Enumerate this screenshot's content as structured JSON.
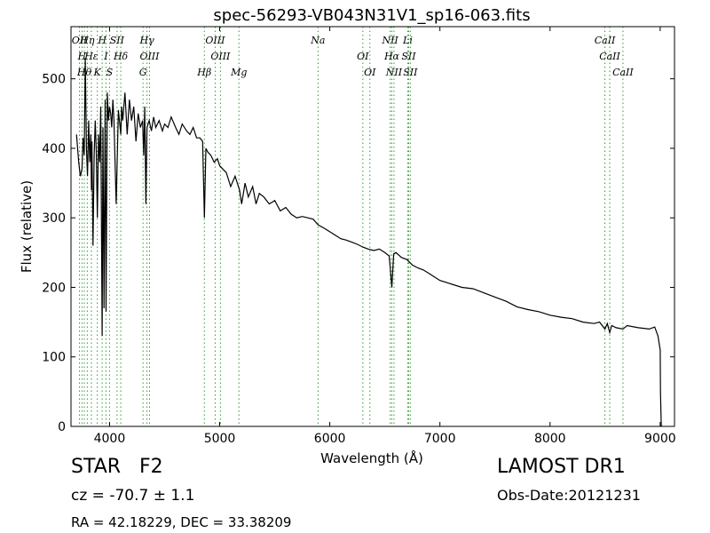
{
  "chart_data": {
    "type": "line",
    "title": "spec-56293-VB043N31V1_sp16-063.fits",
    "xlabel": "Wavelength (Å)",
    "ylabel": "Flux (relative)",
    "xlim": [
      3650,
      9130
    ],
    "ylim": [
      0,
      575
    ],
    "xticks": [
      4000,
      5000,
      6000,
      7000,
      8000,
      9000
    ],
    "yticks": [
      0,
      100,
      200,
      300,
      400,
      500
    ],
    "grid": false,
    "line_color": "#000000",
    "marker_color": "#2ca02c",
    "series": [
      {
        "values_x": [
          3700,
          3720,
          3735,
          3750,
          3760,
          3770,
          3780,
          3790,
          3800,
          3810,
          3820,
          3830,
          3835,
          3840,
          3850,
          3860,
          3870,
          3880,
          3889,
          3900,
          3910,
          3920,
          3933,
          3940,
          3950,
          3960,
          3968,
          3980,
          3990,
          4000,
          4010,
          4020,
          4030,
          4040,
          4060,
          4080,
          4102,
          4110,
          4120,
          4140,
          4160,
          4180,
          4200,
          4220,
          4240,
          4260,
          4280,
          4300,
          4310,
          4320,
          4330,
          4340,
          4360,
          4380,
          4400,
          4420,
          4450,
          4480,
          4500,
          4530,
          4560,
          4600,
          4630,
          4660,
          4700,
          4730,
          4760,
          4790,
          4820,
          4845,
          4861,
          4875,
          4890,
          4920,
          4950,
          4980,
          5000,
          5030,
          5060,
          5100,
          5140,
          5180,
          5200,
          5230,
          5260,
          5300,
          5330,
          5360,
          5400,
          5450,
          5500,
          5550,
          5600,
          5650,
          5700,
          5750,
          5800,
          5850,
          5893,
          5950,
          6000,
          6050,
          6100,
          6150,
          6200,
          6250,
          6300,
          6350,
          6400,
          6450,
          6500,
          6540,
          6563,
          6580,
          6600,
          6650,
          6700,
          6750,
          6800,
          6850,
          6900,
          6950,
          7000,
          7100,
          7200,
          7300,
          7400,
          7500,
          7600,
          7700,
          7800,
          7900,
          8000,
          8100,
          8200,
          8300,
          8400,
          8450,
          8498,
          8520,
          8542,
          8560,
          8600,
          8662,
          8700,
          8800,
          8900,
          8950,
          8980,
          9000,
          9003,
          9010,
          9020
        ],
        "values_y": [
          420,
          380,
          360,
          370,
          415,
          390,
          530,
          400,
          360,
          440,
          380,
          420,
          340,
          410,
          260,
          390,
          440,
          395,
          300,
          420,
          380,
          460,
          130,
          430,
          170,
          470,
          165,
          480,
          440,
          460,
          450,
          430,
          470,
          440,
          320,
          455,
          420,
          460,
          440,
          480,
          420,
          470,
          440,
          460,
          410,
          450,
          430,
          440,
          390,
          460,
          320,
          430,
          440,
          425,
          445,
          430,
          440,
          425,
          435,
          430,
          445,
          430,
          420,
          435,
          425,
          420,
          430,
          415,
          415,
          410,
          300,
          400,
          395,
          390,
          380,
          385,
          375,
          370,
          365,
          345,
          360,
          340,
          320,
          350,
          330,
          345,
          320,
          335,
          330,
          320,
          325,
          310,
          315,
          305,
          300,
          302,
          300,
          298,
          290,
          285,
          280,
          275,
          270,
          268,
          265,
          262,
          258,
          255,
          253,
          255,
          250,
          245,
          200,
          248,
          250,
          243,
          240,
          232,
          228,
          225,
          220,
          215,
          210,
          205,
          200,
          198,
          192,
          186,
          180,
          172,
          168,
          165,
          160,
          157,
          155,
          150,
          148,
          150,
          140,
          148,
          135,
          145,
          142,
          140,
          145,
          142,
          140,
          143,
          130,
          110,
          50,
          0,
          0
        ],
        "name": ""
      }
    ],
    "lines": [
      {
        "x": 3727,
        "label": "OII"
      },
      {
        "x": 3750,
        "label": "H"
      },
      {
        "x": 3771,
        "label": "Hθ"
      },
      {
        "x": 3798,
        "label": "Hη"
      },
      {
        "x": 3835,
        "label": "Hε"
      },
      {
        "x": 3889,
        "label": "K"
      },
      {
        "x": 3933,
        "label": "H"
      },
      {
        "x": 3968,
        "label": "I"
      },
      {
        "x": 4000,
        "label": "S"
      },
      {
        "x": 4068,
        "label": "SII"
      },
      {
        "x": 4102,
        "label": "Hδ"
      },
      {
        "x": 4304,
        "label": "G"
      },
      {
        "x": 4340,
        "label": "Hγ"
      },
      {
        "x": 4363,
        "label": "OIII"
      },
      {
        "x": 4861,
        "label": "Hβ"
      },
      {
        "x": 4959,
        "label": "OIII"
      },
      {
        "x": 5007,
        "label": "OIII"
      },
      {
        "x": 5175,
        "label": "Mg"
      },
      {
        "x": 5893,
        "label": "Na"
      },
      {
        "x": 6300,
        "label": "OI"
      },
      {
        "x": 6364,
        "label": "OI"
      },
      {
        "x": 6548,
        "label": "NII"
      },
      {
        "x": 6563,
        "label": "Hα"
      },
      {
        "x": 6583,
        "label": "NII"
      },
      {
        "x": 6708,
        "label": "Li"
      },
      {
        "x": 6716,
        "label": "SII"
      },
      {
        "x": 6731,
        "label": "SII"
      },
      {
        "x": 8498,
        "label": "CaII"
      },
      {
        "x": 8542,
        "label": "CaII"
      },
      {
        "x": 8662,
        "label": "CaII"
      }
    ]
  },
  "info": {
    "object_class": "STAR",
    "subclass": "F2",
    "redshift": "cz = -70.7 ± 1.1",
    "coords": "RA = 42.18229, DEC = 33.38209",
    "survey": "LAMOST DR1",
    "obs_date": "Obs-Date:20121231"
  }
}
